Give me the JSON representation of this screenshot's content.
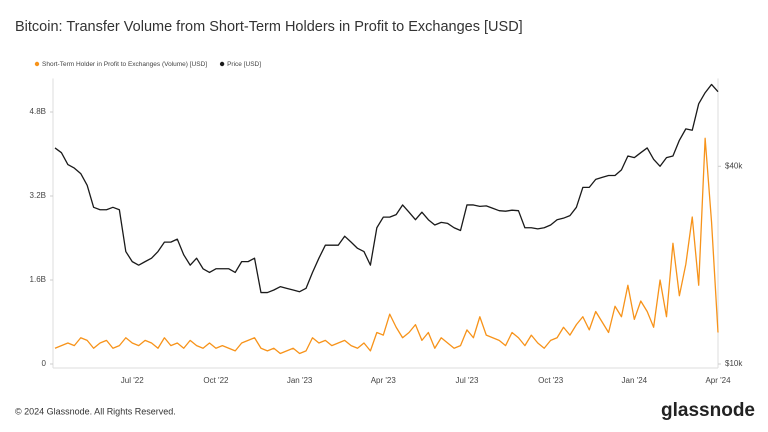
{
  "chart_data": {
    "type": "line",
    "title": "Bitcoin: Transfer Volume from Short-Term Holders in Profit to Exchanges [USD]",
    "categories": [
      null,
      null,
      null,
      null,
      null,
      null,
      null,
      null,
      null,
      null,
      null,
      null,
      "Jul '22",
      null,
      null,
      null,
      null,
      null,
      null,
      null,
      null,
      null,
      null,
      null,
      null,
      "Oct '22",
      null,
      null,
      null,
      null,
      null,
      null,
      null,
      null,
      null,
      null,
      null,
      null,
      "Jan '23",
      null,
      null,
      null,
      null,
      null,
      null,
      null,
      null,
      null,
      null,
      null,
      null,
      "Apr '23",
      null,
      null,
      null,
      null,
      null,
      null,
      null,
      null,
      null,
      null,
      null,
      null,
      "Jul '23",
      null,
      null,
      null,
      null,
      null,
      null,
      null,
      null,
      null,
      null,
      null,
      null,
      "Oct '23",
      null,
      null,
      null,
      null,
      null,
      null,
      null,
      null,
      null,
      null,
      null,
      null,
      "Jan '24",
      null,
      null,
      null,
      null,
      null,
      null,
      null,
      null,
      null,
      null,
      null,
      null,
      "Apr '24"
    ],
    "series": [
      {
        "name": "Short-Term Holder in Profit to Exchanges (Volume) [USD]",
        "color": "#f7931a",
        "axis": "y",
        "values": [
          300000000.0,
          350000000.0,
          400000000.0,
          350000000.0,
          500000000.0,
          450000000.0,
          300000000.0,
          400000000.0,
          450000000.0,
          300000000.0,
          350000000.0,
          500000000.0,
          400000000.0,
          350000000.0,
          450000000.0,
          400000000.0,
          300000000.0,
          500000000.0,
          350000000.0,
          400000000.0,
          300000000.0,
          450000000.0,
          350000000.0,
          300000000.0,
          400000000.0,
          300000000.0,
          350000000.0,
          300000000.0,
          250000000.0,
          400000000.0,
          450000000.0,
          500000000.0,
          300000000.0,
          250000000.0,
          300000000.0,
          200000000.0,
          250000000.0,
          300000000.0,
          200000000.0,
          250000000.0,
          500000000.0,
          400000000.0,
          450000000.0,
          350000000.0,
          400000000.0,
          450000000.0,
          350000000.0,
          300000000.0,
          400000000.0,
          250000000.0,
          600000000.0,
          550000000.0,
          950000000.0,
          700000000.0,
          500000000.0,
          600000000.0,
          750000000.0,
          450000000.0,
          600000000.0,
          300000000.0,
          500000000.0,
          400000000.0,
          300000000.0,
          350000000.0,
          650000000.0,
          500000000.0,
          900000000.0,
          550000000.0,
          500000000.0,
          450000000.0,
          350000000.0,
          600000000.0,
          500000000.0,
          350000000.0,
          550000000.0,
          400000000.0,
          300000000.0,
          450000000.0,
          500000000.0,
          700000000.0,
          550000000.0,
          750000000.0,
          900000000.0,
          650000000.0,
          1000000000.0,
          800000000.0,
          600000000.0,
          1100000000.0,
          900000000.0,
          1500000000.0,
          850000000.0,
          1200000000.0,
          1000000000.0,
          700000000.0,
          1600000000.0,
          900000000.0,
          2300000000.0,
          1300000000.0,
          1900000000.0,
          2800000000.0,
          1500000000.0,
          4300000000.0,
          2700000000.0,
          600000000.0
        ]
      },
      {
        "name": "Price [USD]",
        "color": "#1a1a1a",
        "axis": "y2",
        "values": [
          45500,
          44000,
          40500,
          39500,
          38000,
          35000,
          30000,
          29500,
          29500,
          30000,
          29500,
          22000,
          20500,
          20000,
          20500,
          21000,
          22000,
          23500,
          23500,
          24000,
          21500,
          20000,
          21000,
          19500,
          19000,
          19500,
          19500,
          19500,
          19000,
          20500,
          20500,
          21000,
          16500,
          16500,
          16800,
          17200,
          17000,
          16800,
          16600,
          17000,
          19000,
          21000,
          23000,
          23000,
          23000,
          24500,
          23500,
          22500,
          22000,
          20000,
          26000,
          28000,
          28000,
          28500,
          30500,
          29000,
          27500,
          29000,
          27500,
          26500,
          27000,
          26800,
          26000,
          25500,
          30500,
          30500,
          30200,
          30300,
          29800,
          29300,
          29200,
          29400,
          29300,
          26000,
          26000,
          25800,
          26000,
          26500,
          27500,
          27800,
          28300,
          30000,
          34500,
          34500,
          36500,
          37000,
          37500,
          37500,
          39000,
          43000,
          42500,
          44000,
          45500,
          42000,
          40000,
          42500,
          43000,
          48000,
          52000,
          51500,
          62000,
          67000,
          71000,
          67500
        ]
      }
    ],
    "ylim": [
      0,
      5400000000
    ],
    "yticks": [
      0,
      {
        "value": 1600000000,
        "label": "1.6B"
      },
      {
        "value": 3200000000,
        "label": "3.2B"
      },
      {
        "value": 4800000000,
        "label": "4.8B"
      }
    ],
    "y2lim": [
      10000,
      73000
    ],
    "y2ticks": [
      {
        "value": 10000,
        "label": "$10k"
      },
      {
        "value": 40000,
        "label": "$40k"
      }
    ],
    "y2log": true,
    "grid": false
  },
  "footer": {
    "copyright": "© 2024 Glassnode. All Rights Reserved.",
    "logo": "glassnode"
  }
}
